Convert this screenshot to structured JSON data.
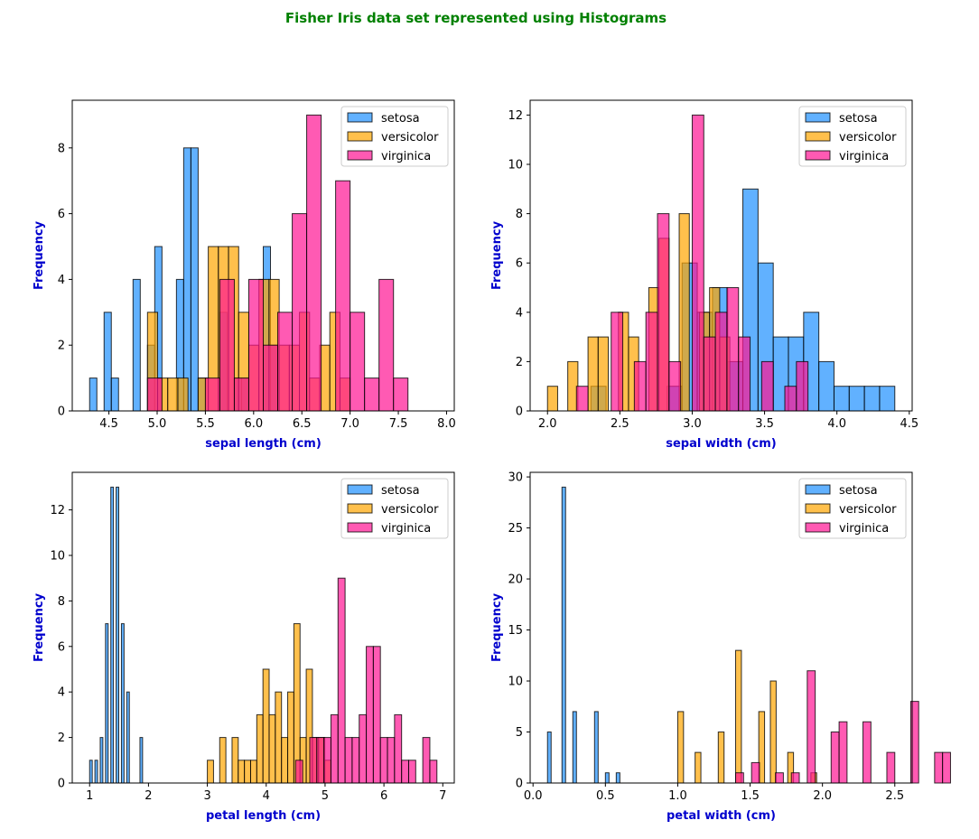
{
  "figure": {
    "title": "Fisher Iris data set represented using Histograms",
    "title_color": "#008000",
    "label_color": "#0000cd"
  },
  "series_colors": {
    "setosa": "#1e90ff",
    "versicolor": "#ffa500",
    "virginica": "#ff1493"
  },
  "chart_data": [
    {
      "type": "histogram",
      "xlabel": "sepal length (cm)",
      "ylabel": "Frequency",
      "xlim": [
        4.12,
        8.08
      ],
      "ylim": [
        0,
        9.45
      ],
      "xticks": [
        4.5,
        5.0,
        5.5,
        6.0,
        6.5,
        7.0,
        7.5,
        8.0
      ],
      "xtick_labels": [
        "4.5",
        "5.0",
        "5.5",
        "6.0",
        "6.5",
        "7.0",
        "7.5",
        "8.0"
      ],
      "yticks": [
        0,
        2,
        4,
        6,
        8
      ],
      "ytick_labels": [
        "0",
        "2",
        "4",
        "6",
        "8"
      ],
      "legend": "top-right",
      "series": [
        {
          "name": "setosa",
          "bin_start": 4.3,
          "bin_width": 0.075,
          "counts": [
            1,
            0,
            3,
            1,
            0,
            0,
            4,
            0,
            2,
            5,
            0,
            0,
            4,
            8,
            8,
            1,
            0,
            0,
            3,
            0,
            1,
            1,
            0,
            0,
            5,
            2,
            0,
            0,
            0,
            0,
            0,
            0,
            0,
            0,
            0,
            0,
            0,
            0,
            0,
            0
          ]
        },
        {
          "name": "versicolor",
          "bin_start": 4.9,
          "bin_width": 0.105,
          "counts": [
            3,
            1,
            1,
            1,
            0,
            1,
            5,
            5,
            5,
            3,
            2,
            4,
            4,
            2,
            2,
            3,
            1,
            2,
            3,
            1
          ]
        },
        {
          "name": "virginica",
          "bin_start": 4.9,
          "bin_width": 0.15,
          "counts": [
            1,
            0,
            0,
            0,
            1,
            4,
            1,
            4,
            2,
            3,
            6,
            9,
            0,
            7,
            3,
            1,
            4,
            1,
            0,
            0
          ]
        }
      ]
    },
    {
      "type": "histogram",
      "xlabel": "sepal width (cm)",
      "ylabel": "Frequency",
      "xlim": [
        1.88,
        4.52
      ],
      "ylim": [
        0,
        12.6
      ],
      "xticks": [
        2.0,
        2.5,
        3.0,
        3.5,
        4.0,
        4.5
      ],
      "xtick_labels": [
        "2.0",
        "2.5",
        "3.0",
        "3.5",
        "4.0",
        "4.5"
      ],
      "yticks": [
        0,
        2,
        4,
        6,
        8,
        10,
        12
      ],
      "ytick_labels": [
        "0",
        "2",
        "4",
        "6",
        "8",
        "10",
        "12"
      ],
      "legend": "top-right",
      "series": [
        {
          "name": "setosa",
          "bin_start": 2.3,
          "bin_width": 0.105,
          "counts": [
            1,
            0,
            0,
            0,
            0,
            1,
            6,
            4,
            5,
            2,
            9,
            6,
            3,
            3,
            4,
            2,
            1,
            1,
            1,
            1
          ]
        },
        {
          "name": "versicolor",
          "bin_start": 2.0,
          "bin_width": 0.07,
          "counts": [
            1,
            0,
            2,
            0,
            3,
            3,
            0,
            4,
            3,
            0,
            5,
            7,
            0,
            8,
            0,
            4,
            5,
            3,
            0,
            0
          ]
        },
        {
          "name": "virginica",
          "bin_start": 2.2,
          "bin_width": 0.08,
          "counts": [
            1,
            0,
            0,
            4,
            0,
            2,
            4,
            8,
            2,
            0,
            12,
            3,
            4,
            5,
            3,
            0,
            2,
            0,
            1,
            2
          ]
        }
      ]
    },
    {
      "type": "histogram",
      "xlabel": "petal length (cm)",
      "ylabel": "Frequency",
      "xlim": [
        0.705,
        7.195
      ],
      "ylim": [
        0,
        13.65
      ],
      "xticks": [
        1,
        2,
        3,
        4,
        5,
        6,
        7
      ],
      "xtick_labels": [
        "1",
        "2",
        "3",
        "4",
        "5",
        "6",
        "7"
      ],
      "yticks": [
        0,
        2,
        4,
        6,
        8,
        10,
        12
      ],
      "ytick_labels": [
        "0",
        "2",
        "4",
        "6",
        "8",
        "10",
        "12"
      ],
      "legend": "top-right",
      "series": [
        {
          "name": "setosa",
          "bin_start": 1.0,
          "bin_width": 0.045,
          "counts": [
            1,
            0,
            1,
            0,
            2,
            0,
            7,
            0,
            13,
            0,
            13,
            0,
            7,
            0,
            4,
            0,
            0,
            0,
            0,
            2
          ]
        },
        {
          "name": "versicolor",
          "bin_start": 3.0,
          "bin_width": 0.105,
          "counts": [
            1,
            0,
            2,
            0,
            2,
            1,
            1,
            1,
            3,
            5,
            3,
            4,
            2,
            4,
            7,
            2,
            5,
            2,
            2,
            1
          ]
        },
        {
          "name": "virginica",
          "bin_start": 4.5,
          "bin_width": 0.12,
          "counts": [
            1,
            0,
            2,
            2,
            2,
            3,
            9,
            2,
            2,
            3,
            6,
            6,
            2,
            2,
            3,
            1,
            1,
            0,
            2,
            1
          ]
        }
      ]
    },
    {
      "type": "histogram",
      "xlabel": "petal width (cm)",
      "ylabel": "Frequency",
      "xlim": [
        -0.02,
        2.62
      ],
      "ylim": [
        0,
        30.45
      ],
      "xticks": [
        0.0,
        0.5,
        1.0,
        1.5,
        2.0,
        2.5
      ],
      "xtick_labels": [
        "0.0",
        "0.5",
        "1.0",
        "1.5",
        "2.0",
        "2.5"
      ],
      "yticks": [
        0,
        5,
        10,
        15,
        20,
        25,
        30
      ],
      "ytick_labels": [
        "0",
        "5",
        "10",
        "15",
        "20",
        "25",
        "30"
      ],
      "legend": "top-right",
      "series": [
        {
          "name": "setosa",
          "bin_start": 0.1,
          "bin_width": 0.025,
          "counts": [
            5,
            0,
            0,
            0,
            29,
            0,
            0,
            7,
            0,
            0,
            0,
            0,
            0,
            7,
            0,
            0,
            1,
            0,
            0,
            1
          ]
        },
        {
          "name": "versicolor",
          "bin_start": 1.0,
          "bin_width": 0.04,
          "counts": [
            7,
            0,
            0,
            3,
            0,
            0,
            0,
            5,
            0,
            0,
            13,
            0,
            0,
            0,
            7,
            0,
            10,
            0,
            0,
            3,
            0,
            0,
            0,
            1,
            0,
            0,
            0,
            0,
            0,
            0,
            0,
            0,
            0,
            0,
            0,
            0,
            0,
            0,
            0,
            0,
            0,
            0,
            0,
            0,
            0,
            0,
            0,
            0,
            0,
            0
          ]
        },
        {
          "name": "virginica",
          "bin_start": 1.4,
          "bin_width": 0.055,
          "counts": [
            1,
            0,
            2,
            0,
            0,
            1,
            0,
            1,
            0,
            11,
            0,
            0,
            5,
            6,
            0,
            0,
            6,
            0,
            0,
            3,
            0,
            0,
            8,
            0,
            0,
            3,
            3,
            0,
            0,
            0
          ]
        }
      ]
    }
  ]
}
